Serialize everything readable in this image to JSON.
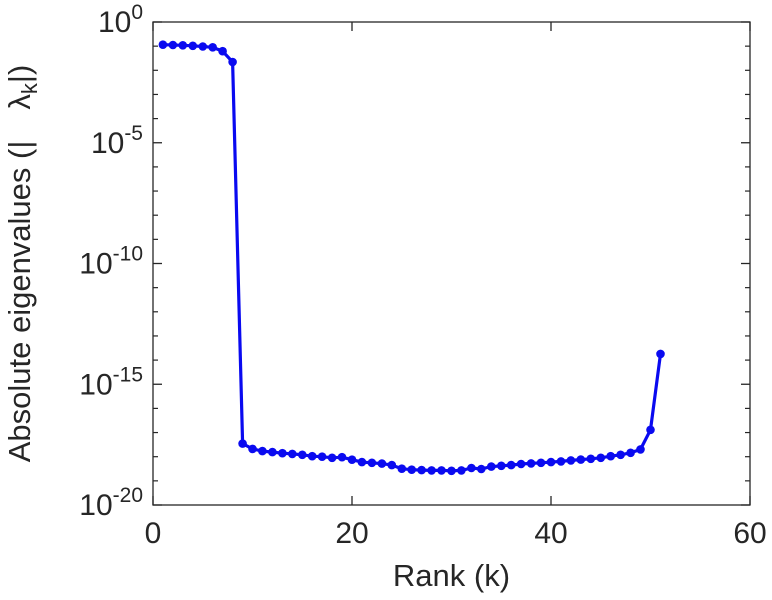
{
  "figure": {
    "background": "#ffffff",
    "axis_color": "#262626",
    "text_color": "#262626"
  },
  "chart_data": {
    "type": "line",
    "title": "",
    "xlabel": "Rank (k)",
    "ylabel": {
      "prefix": "Absolute eigenvalues (|",
      "gap": "  ",
      "symbol": "λ",
      "subscript": "k",
      "suffix": "|)"
    },
    "legend": null,
    "grid": false,
    "x_axis": {
      "scale": "linear",
      "min": 0,
      "max": 60,
      "ticks": [
        0,
        20,
        40,
        60
      ],
      "tick_labels": [
        "0",
        "20",
        "40",
        "60"
      ]
    },
    "y_axis": {
      "scale": "log10",
      "min_exponent": -20,
      "max_exponent": 0,
      "major_tick_exponents": [
        0,
        -5,
        -10,
        -15,
        -20
      ],
      "major_tick_labels": [
        "0",
        "-5",
        "-10",
        "-15",
        "-20"
      ],
      "tick_base": "10",
      "minor_ticks_every_decade": true
    },
    "series": [
      {
        "name": "absolute-eigenvalues",
        "color": "#0a0af0",
        "marker": "filled-circle",
        "line_width": 3.2,
        "marker_radius": 4.3,
        "x": [
          1,
          2,
          3,
          4,
          5,
          6,
          7,
          8,
          9,
          10,
          11,
          12,
          13,
          14,
          15,
          16,
          17,
          18,
          19,
          20,
          21,
          22,
          23,
          24,
          25,
          26,
          27,
          28,
          29,
          30,
          31,
          32,
          33,
          34,
          35,
          36,
          37,
          38,
          39,
          40,
          41,
          42,
          43,
          44,
          45,
          46,
          47,
          48,
          49,
          50,
          51
        ],
        "y": [
          0.115,
          0.112,
          0.108,
          0.103,
          0.097,
          0.09,
          0.062,
          0.022,
          3.5e-18,
          2.1e-18,
          1.7e-18,
          1.55e-18,
          1.4e-18,
          1.3e-18,
          1.2e-18,
          1.05e-18,
          1e-18,
          9e-19,
          9.5e-19,
          7.5e-19,
          6e-19,
          5.6e-19,
          5.2e-19,
          4.5e-19,
          3.2e-19,
          2.9e-19,
          2.8e-19,
          2.7e-19,
          2.7e-19,
          2.6e-19,
          2.7e-19,
          3.4e-19,
          3.1e-19,
          3.9e-19,
          4.2e-19,
          4.5e-19,
          5e-19,
          5.3e-19,
          5.6e-19,
          6e-19,
          6.4e-19,
          7e-19,
          7.6e-19,
          8.2e-19,
          9e-19,
          1.05e-18,
          1.2e-18,
          1.45e-18,
          2e-18,
          1.3e-17,
          1.8e-14
        ]
      }
    ]
  }
}
